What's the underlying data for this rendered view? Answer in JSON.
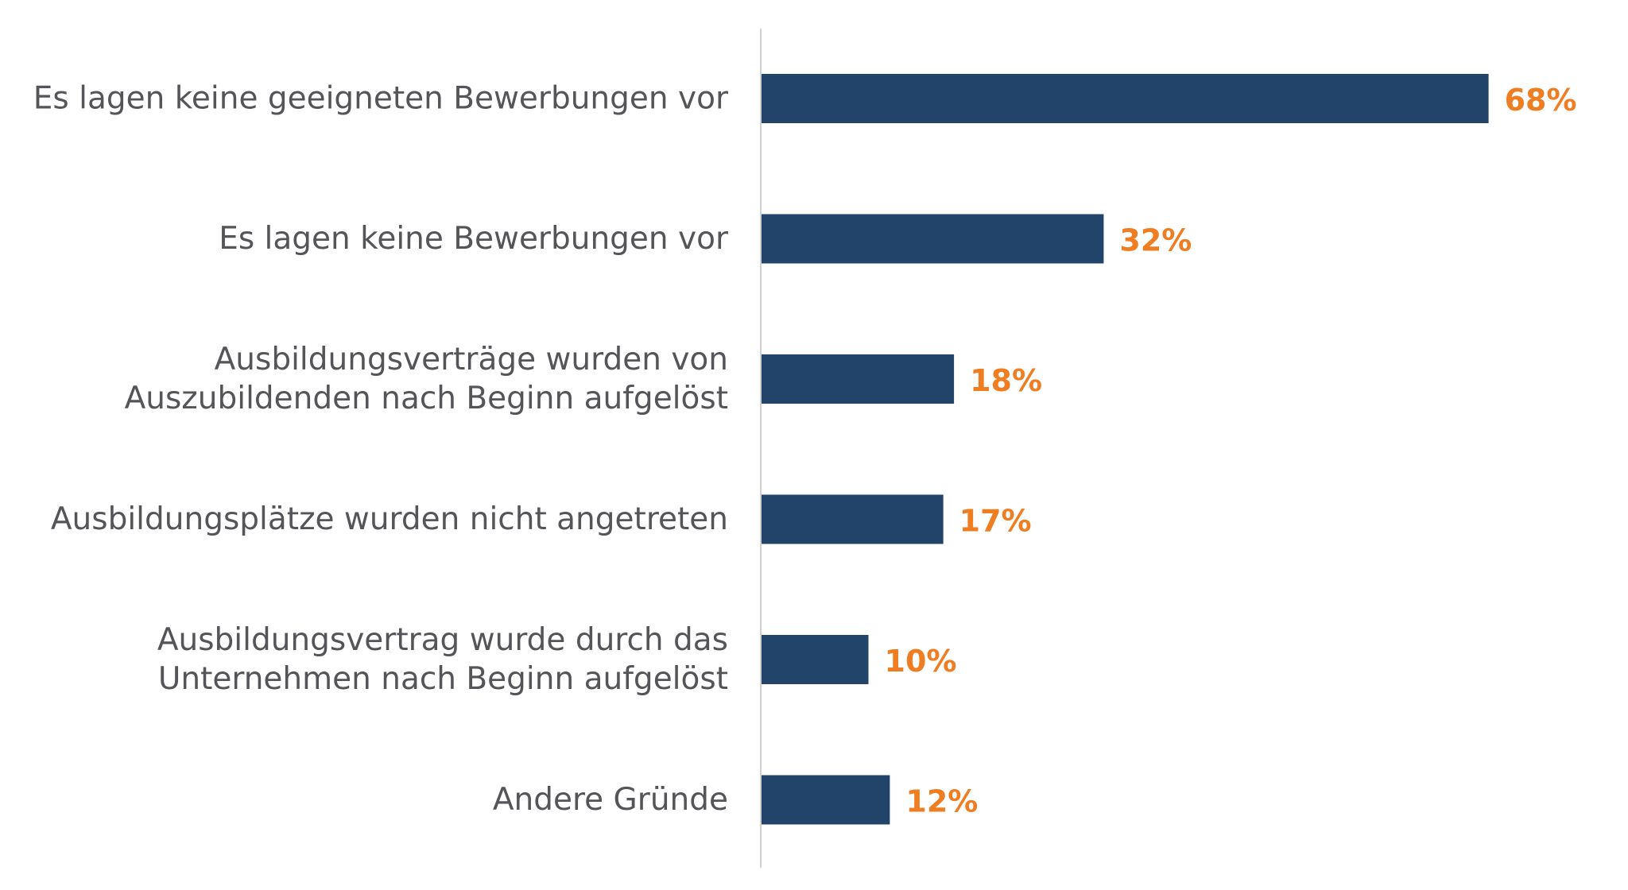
{
  "chart_data": {
    "type": "bar",
    "orientation": "horizontal",
    "categories": [
      [
        "Es lagen keine geeigneten Bewerbungen vor"
      ],
      [
        "Es lagen keine Bewerbungen vor"
      ],
      [
        "Ausbildungsverträge wurden von",
        "Auszubildenden nach Beginn aufgelöst"
      ],
      [
        "Ausbildungsplätze wurden nicht angetreten"
      ],
      [
        "Ausbildungsvertrag wurde durch das",
        "Unternehmen nach Beginn aufgelöst"
      ],
      [
        "Andere Gründe"
      ]
    ],
    "values": [
      68,
      32,
      18,
      17,
      10,
      12
    ],
    "value_labels": [
      "68%",
      "32%",
      "18%",
      "17%",
      "10%",
      "12%"
    ],
    "unit": "%",
    "xlim": [
      0,
      100
    ],
    "grid": false,
    "bar_color": "#22436a",
    "value_label_color": "#ef7d22",
    "axis_color": "#d0d0d0"
  }
}
